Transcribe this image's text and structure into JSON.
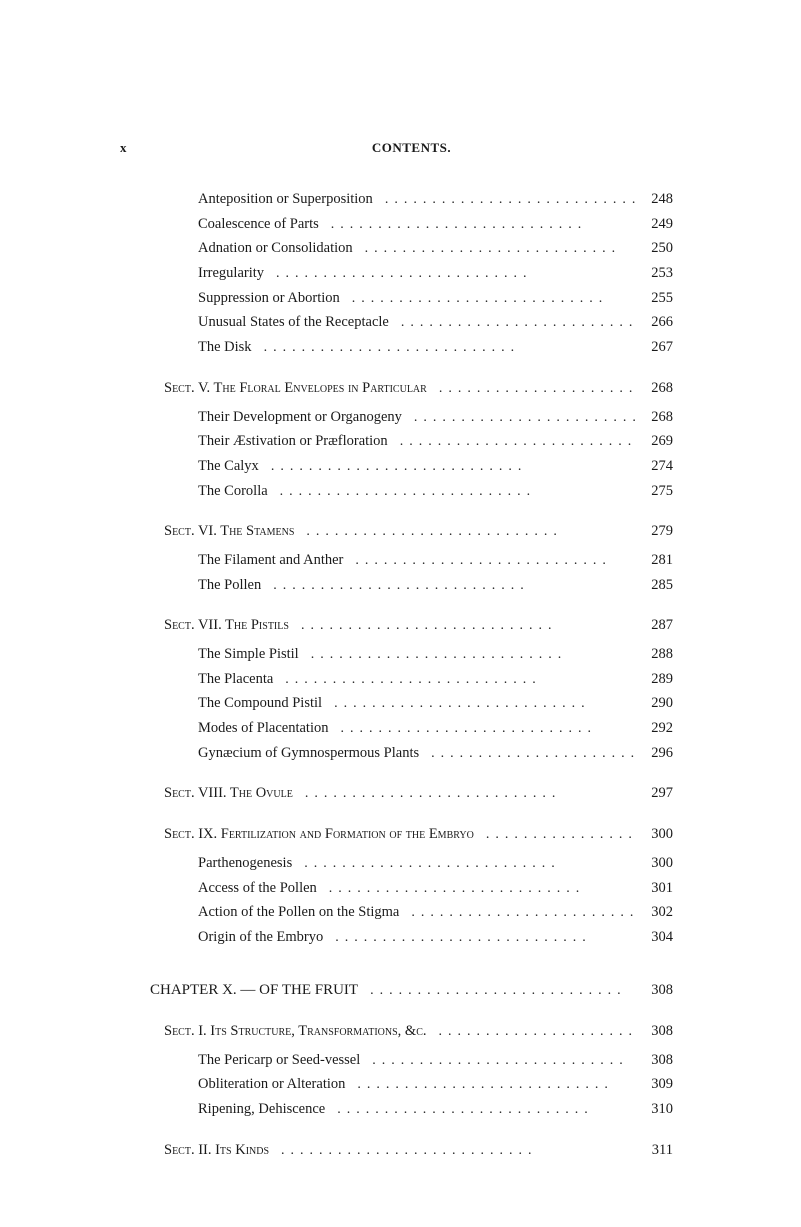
{
  "header": {
    "page_marker": "x",
    "title": "CONTENTS."
  },
  "dot_fill": "...........................",
  "entries": [
    {
      "kind": "sub",
      "label": "Anteposition or Superposition",
      "page": "248"
    },
    {
      "kind": "sub",
      "label": "Coalescence of Parts",
      "page": "249"
    },
    {
      "kind": "sub",
      "label": "Adnation or Consolidation",
      "page": "250"
    },
    {
      "kind": "sub",
      "label": "Irregularity",
      "page": "253"
    },
    {
      "kind": "sub",
      "label": "Suppression or Abortion",
      "page": "255"
    },
    {
      "kind": "sub",
      "label": "Unusual States of the Receptacle",
      "page": "266"
    },
    {
      "kind": "sub",
      "label": "The Disk",
      "page": "267"
    },
    {
      "kind": "sect",
      "label": "Sect. V.  The Floral Envelopes in Particular",
      "page": "268"
    },
    {
      "kind": "sub",
      "label": "Their Development or Organogeny",
      "page": "268"
    },
    {
      "kind": "sub",
      "label": "Their Æstivation or Præfloration",
      "page": "269"
    },
    {
      "kind": "sub",
      "label": "The Calyx",
      "page": "274"
    },
    {
      "kind": "sub",
      "label": "The Corolla",
      "page": "275"
    },
    {
      "kind": "sect",
      "label": "Sect. VI.  The Stamens",
      "page": "279"
    },
    {
      "kind": "sub",
      "label": "The Filament and Anther",
      "page": "281"
    },
    {
      "kind": "sub",
      "label": "The Pollen",
      "page": "285"
    },
    {
      "kind": "sect",
      "label": "Sect. VII.  The Pistils",
      "page": "287"
    },
    {
      "kind": "sub",
      "label": "The Simple Pistil",
      "page": "288"
    },
    {
      "kind": "sub",
      "label": "The Placenta",
      "page": "289"
    },
    {
      "kind": "sub",
      "label": "The Compound Pistil",
      "page": "290"
    },
    {
      "kind": "sub",
      "label": "Modes of Placentation",
      "page": "292"
    },
    {
      "kind": "sub",
      "label": "Gynæcium of Gymnospermous Plants",
      "page": "296"
    },
    {
      "kind": "sect",
      "label": "Sect. VIII.  The Ovule",
      "page": "297"
    },
    {
      "kind": "sect",
      "label": "Sect. IX.  Fertilization and Formation of the Embryo",
      "page": "300"
    },
    {
      "kind": "sub",
      "label": "Parthenogenesis",
      "page": "300"
    },
    {
      "kind": "sub",
      "label": "Access of the Pollen",
      "page": "301"
    },
    {
      "kind": "sub",
      "label": "Action of the Pollen on the Stigma",
      "page": "302"
    },
    {
      "kind": "sub",
      "label": "Origin of the Embryo",
      "page": "304"
    },
    {
      "kind": "chapter",
      "label": "CHAPTER X. — OF THE FRUIT",
      "page": "308"
    },
    {
      "kind": "sect",
      "label": "Sect. I.  Its Structure, Transformations, &c.",
      "page": "308"
    },
    {
      "kind": "sub",
      "label": "The Pericarp or Seed-vessel",
      "page": "308"
    },
    {
      "kind": "sub",
      "label": "Obliteration or Alteration",
      "page": "309"
    },
    {
      "kind": "sub",
      "label": "Ripening, Dehiscence",
      "page": "310"
    },
    {
      "kind": "sect",
      "label": "Sect. II.  Its Kinds",
      "page": "311"
    }
  ]
}
